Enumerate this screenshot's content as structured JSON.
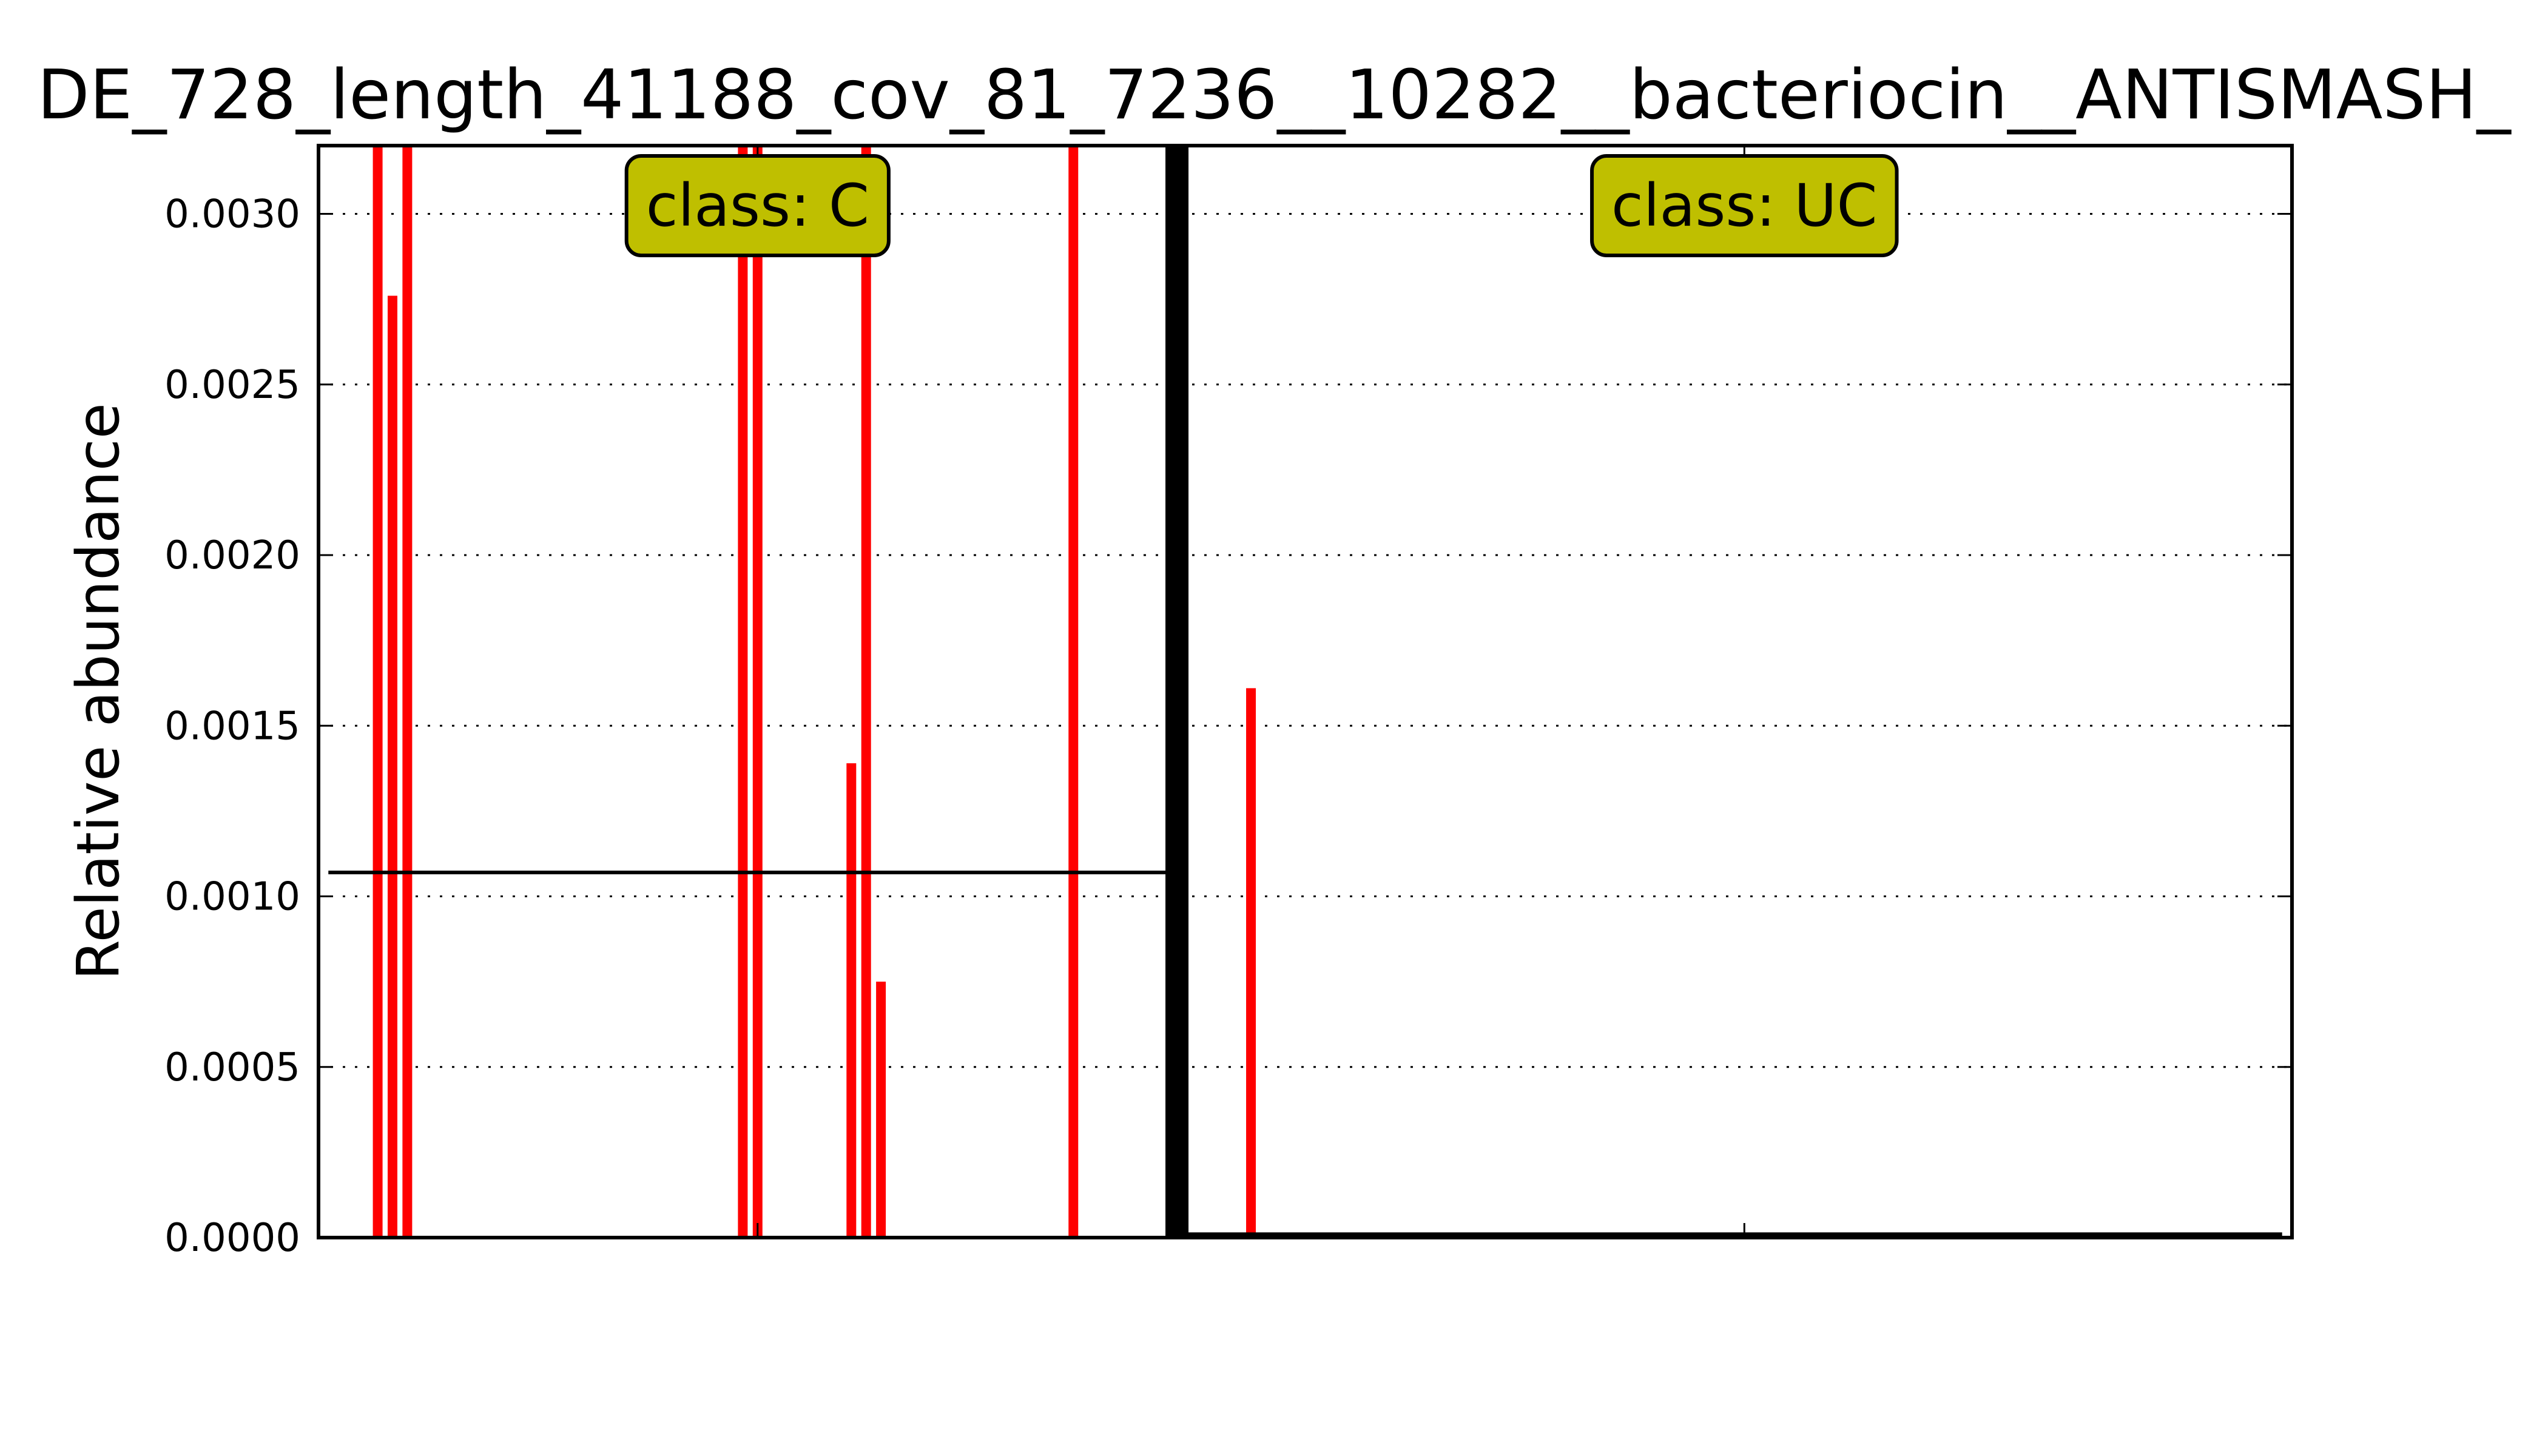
{
  "chart_data": {
    "type": "bar",
    "title": "DE_728_length_41188_cov_81_7236__10282__bacteriocin__ANTISMASH_",
    "xlabel": "",
    "ylabel": "Relative abundance",
    "ylim": [
      0,
      0.0032
    ],
    "yticks": [
      "0.0000",
      "0.0005",
      "0.0010",
      "0.0015",
      "0.0020",
      "0.0025",
      "0.0030"
    ],
    "ytick_values": [
      0,
      0.0005,
      0.001,
      0.0015,
      0.002,
      0.0025,
      0.003
    ],
    "grid": "horizontal dotted",
    "x_range": [
      0,
      40
    ],
    "divider_x": 17.4,
    "colors": {
      "bars": "#ff0000",
      "label_box": "#bfbf00",
      "divider": "#000000"
    },
    "groups": [
      {
        "label": "class: C",
        "label_x": 8.9,
        "mean": 0.00107,
        "range": [
          0.2,
          17.4
        ]
      },
      {
        "label": "class: UC",
        "label_x": 28.9,
        "mean": 1e-05,
        "range": [
          17.6,
          39.8
        ]
      }
    ],
    "bars": [
      {
        "x": 1.2,
        "value": 0.0032
      },
      {
        "x": 1.5,
        "value": 0.00276
      },
      {
        "x": 1.8,
        "value": 0.0032
      },
      {
        "x": 8.6,
        "value": 0.0032
      },
      {
        "x": 8.9,
        "value": 0.0032
      },
      {
        "x": 10.8,
        "value": 0.00139
      },
      {
        "x": 11.1,
        "value": 0.0032
      },
      {
        "x": 11.4,
        "value": 0.00075
      },
      {
        "x": 15.3,
        "value": 0.0032
      },
      {
        "x": 18.9,
        "value": 0.00161
      }
    ]
  }
}
